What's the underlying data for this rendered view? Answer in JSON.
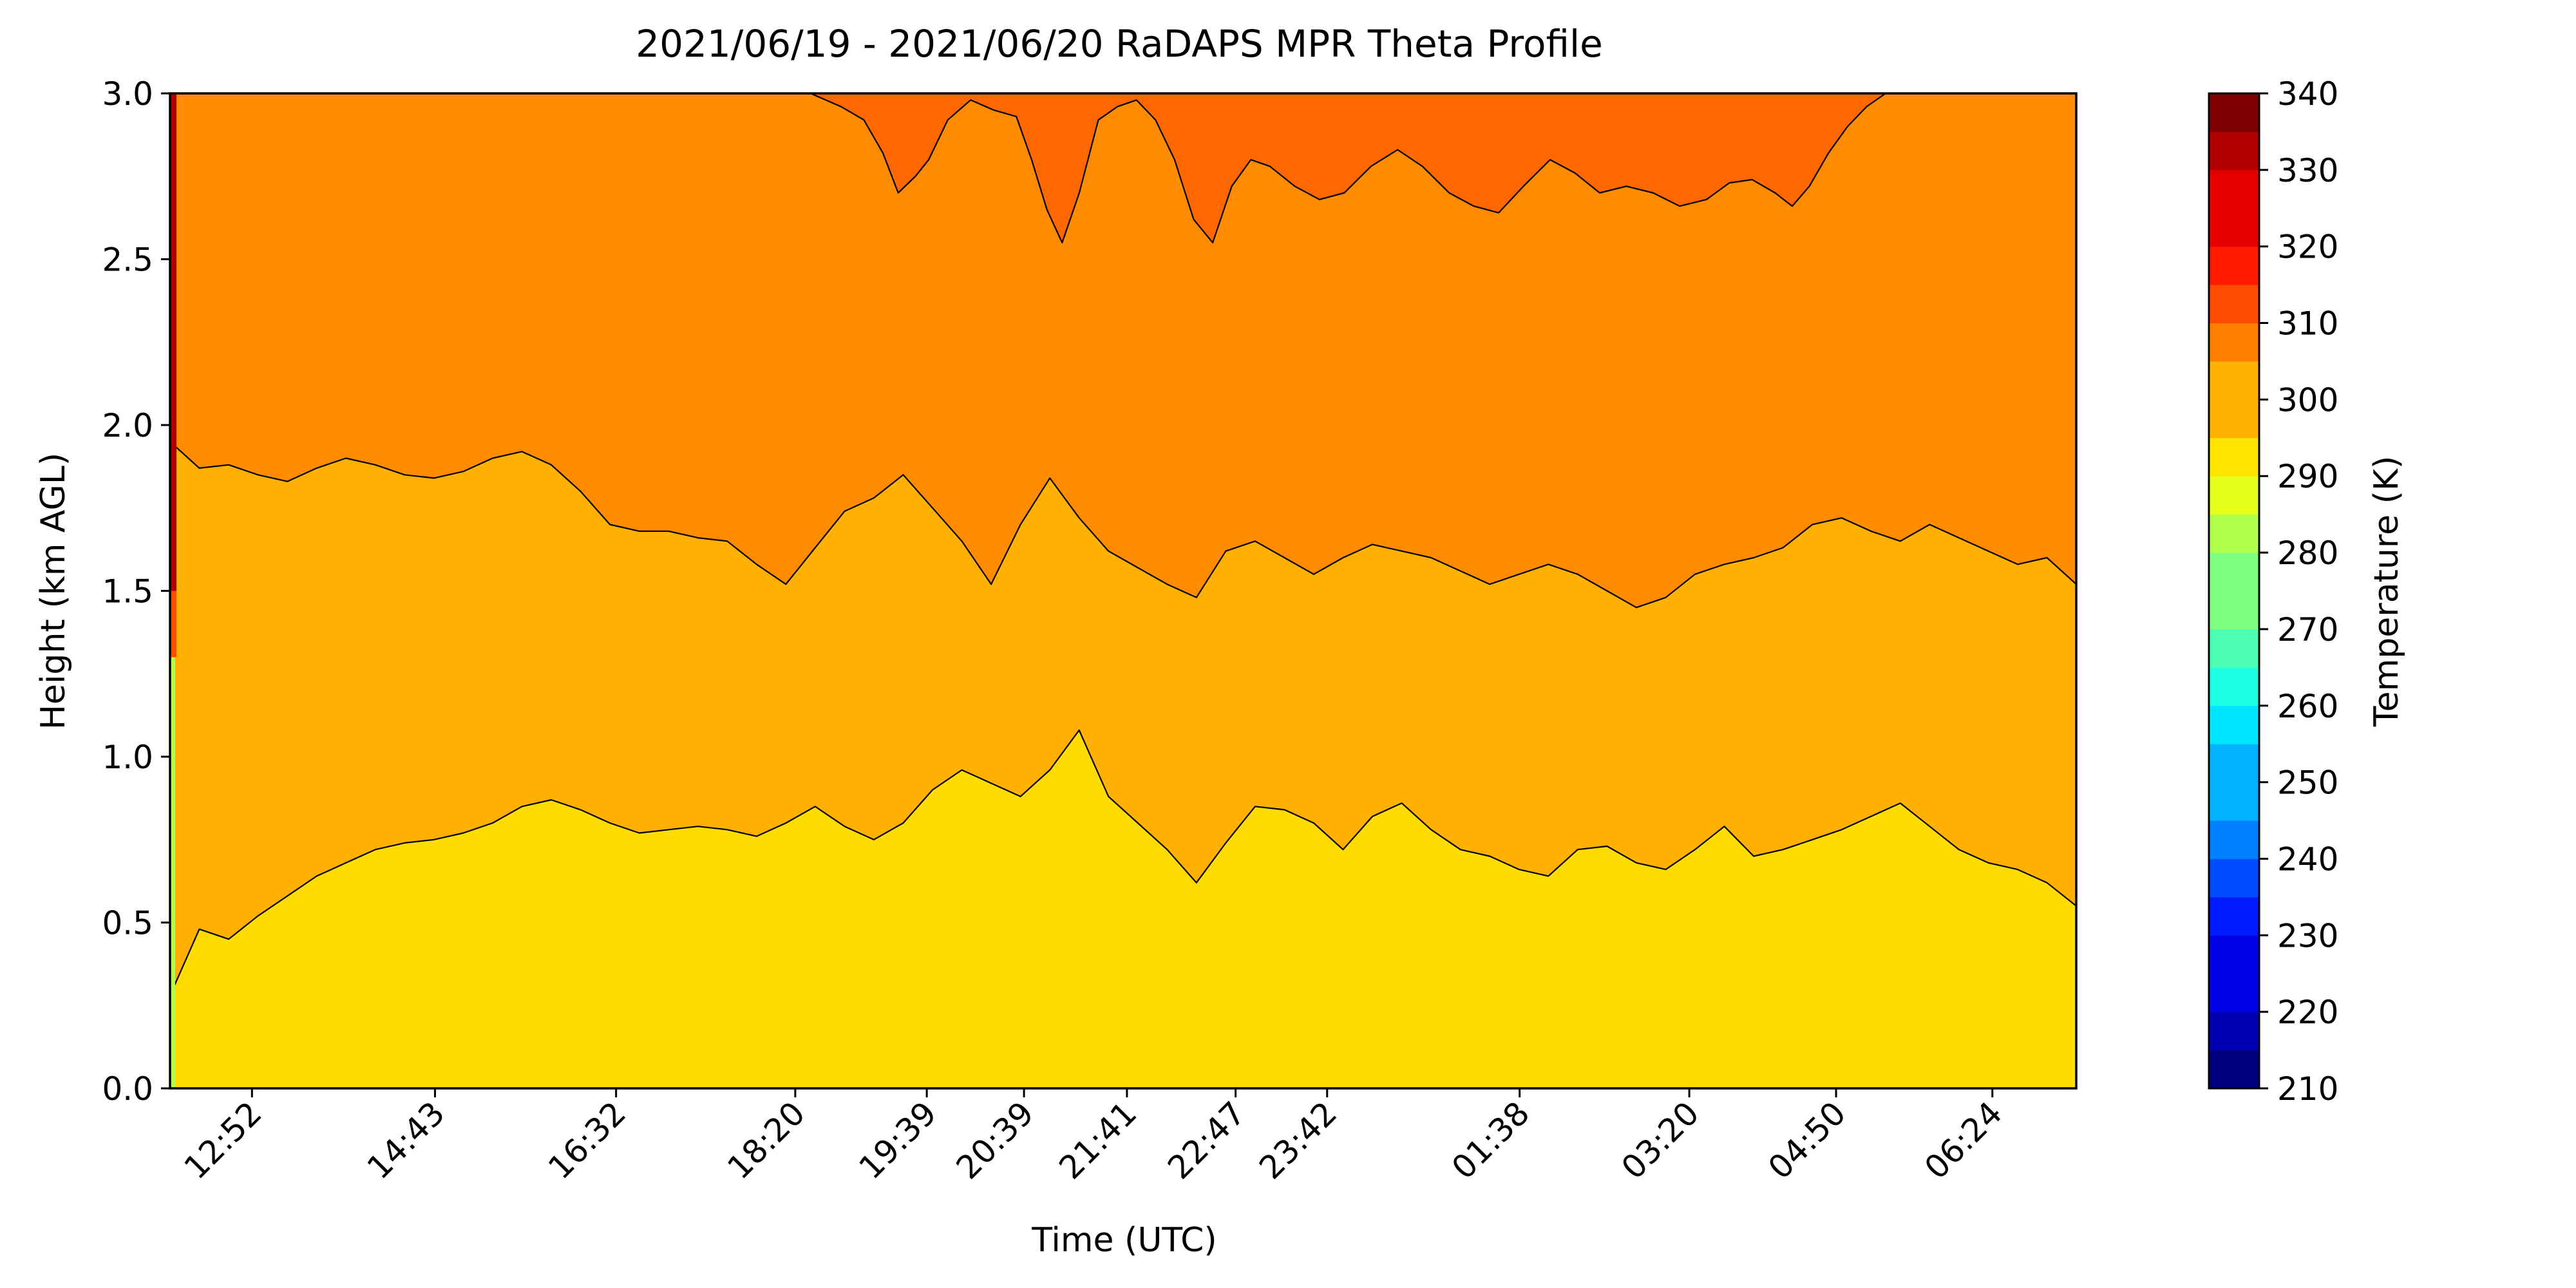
{
  "chart_data": {
    "type": "heatmap",
    "subtype": "filled-contour",
    "title": "2021/06/19 - 2021/06/20 RaDAPS MPR Theta Profile",
    "xlabel": "Time (UTC)",
    "ylabel": "Height (km AGL)",
    "x_tick_labels": [
      "12:52",
      "14:43",
      "16:32",
      "18:20",
      "19:39",
      "20:39",
      "21:41",
      "22:47",
      "23:42",
      "01:38",
      "03:20",
      "04:50",
      "06:24"
    ],
    "x_tick_fraction": [
      0.043,
      0.139,
      0.234,
      0.328,
      0.397,
      0.448,
      0.502,
      0.559,
      0.607,
      0.708,
      0.797,
      0.874,
      0.956
    ],
    "y_ticks": [
      0.0,
      0.5,
      1.0,
      1.5,
      2.0,
      2.5,
      3.0
    ],
    "ylim": [
      0,
      3.0
    ],
    "colorbar": {
      "label": "Temperature (K)",
      "ticks": [
        210,
        220,
        230,
        240,
        250,
        260,
        270,
        280,
        290,
        300,
        310,
        320,
        330,
        340
      ],
      "range": [
        210,
        340
      ],
      "step": 5,
      "colors": [
        "#00007f",
        "#0000b2",
        "#0000e5",
        "#001aff",
        "#004cff",
        "#007fff",
        "#00b2ff",
        "#00e5ff",
        "#1affe5",
        "#4cffb2",
        "#7fff7f",
        "#b2ff4c",
        "#e5ff1a",
        "#ffe500",
        "#ffb200",
        "#ff7f00",
        "#ff4c00",
        "#ff1a00",
        "#e50000",
        "#b20000",
        "#7f0000"
      ]
    },
    "bands": [
      {
        "range": "295-300 K",
        "color": "#ffdc00"
      },
      {
        "range": "300-305 K",
        "color": "#ffb000"
      },
      {
        "range": "305-310 K",
        "color": "#ff8c00"
      },
      {
        "range": "310-315 K",
        "color": "#ff6800"
      }
    ],
    "contours": [
      {
        "level": "300 K",
        "heights_km": [
          0.28,
          0.48,
          0.45,
          0.52,
          0.58,
          0.64,
          0.68,
          0.72,
          0.74,
          0.75,
          0.77,
          0.8,
          0.85,
          0.87,
          0.84,
          0.8,
          0.77,
          0.78,
          0.79,
          0.78,
          0.76,
          0.8,
          0.85,
          0.79,
          0.75,
          0.8,
          0.9,
          0.96,
          0.92,
          0.88,
          0.96,
          1.08,
          0.88,
          0.8,
          0.72,
          0.62,
          0.74,
          0.85,
          0.84,
          0.8,
          0.72,
          0.82,
          0.86,
          0.78,
          0.72,
          0.7,
          0.66,
          0.64,
          0.72,
          0.73,
          0.68,
          0.66,
          0.72,
          0.79,
          0.7,
          0.72,
          0.75,
          0.78,
          0.82,
          0.86,
          0.79,
          0.72,
          0.68,
          0.66,
          0.62,
          0.55
        ]
      },
      {
        "level": "305 K",
        "heights_km": [
          1.95,
          1.87,
          1.88,
          1.85,
          1.83,
          1.87,
          1.9,
          1.88,
          1.85,
          1.84,
          1.86,
          1.9,
          1.92,
          1.88,
          1.8,
          1.7,
          1.68,
          1.68,
          1.66,
          1.65,
          1.58,
          1.52,
          1.63,
          1.74,
          1.78,
          1.85,
          1.75,
          1.65,
          1.52,
          1.7,
          1.84,
          1.72,
          1.62,
          1.57,
          1.52,
          1.48,
          1.62,
          1.65,
          1.6,
          1.55,
          1.6,
          1.64,
          1.62,
          1.6,
          1.56,
          1.52,
          1.55,
          1.58,
          1.55,
          1.5,
          1.45,
          1.48,
          1.55,
          1.58,
          1.6,
          1.63,
          1.7,
          1.72,
          1.68,
          1.65,
          1.7,
          1.66,
          1.62,
          1.58,
          1.6,
          1.52
        ]
      },
      {
        "level": "310 K",
        "segments": [
          {
            "time_fraction": [
              0.336,
              0.352,
              0.364,
              0.374,
              0.382,
              0.391,
              0.398,
              0.408,
              0.42,
              0.432,
              0.444,
              0.452,
              0.46,
              0.468,
              0.477,
              0.487,
              0.497,
              0.507,
              0.517,
              0.527,
              0.537,
              0.547,
              0.557,
              0.567,
              0.577,
              0.59,
              0.603,
              0.616,
              0.63,
              0.644,
              0.657,
              0.671,
              0.684,
              0.697,
              0.71,
              0.724,
              0.737,
              0.75,
              0.764,
              0.778,
              0.792,
              0.806,
              0.818,
              0.83,
              0.842,
              0.851,
              0.86,
              0.87,
              0.88,
              0.89,
              0.9,
              0.912,
              0.925,
              0.938,
              0.95,
              0.962,
              0.972,
              0.98,
              0.99,
              1.0
            ],
            "heights_km": [
              3.0,
              2.96,
              2.92,
              2.82,
              2.7,
              2.75,
              2.8,
              2.92,
              2.98,
              2.95,
              2.93,
              2.8,
              2.65,
              2.55,
              2.7,
              2.92,
              2.96,
              2.98,
              2.92,
              2.8,
              2.62,
              2.55,
              2.72,
              2.8,
              2.78,
              2.72,
              2.68,
              2.7,
              2.78,
              2.83,
              2.78,
              2.7,
              2.66,
              2.64,
              2.72,
              2.8,
              2.76,
              2.7,
              2.72,
              2.7,
              2.66,
              2.68,
              2.73,
              2.74,
              2.7,
              2.66,
              2.72,
              2.82,
              2.9,
              2.96,
              3.0,
              3.0,
              3.0,
              3.0,
              3.0,
              3.0,
              3.0,
              3.0,
              3.0,
              3.0
            ]
          }
        ]
      }
    ]
  }
}
